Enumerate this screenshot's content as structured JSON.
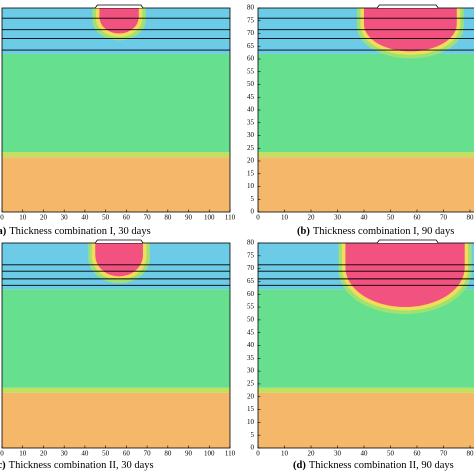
{
  "chart_data": [
    {
      "type": "field",
      "label": "(a)",
      "caption": "Thickness combination I, 30 days",
      "xlim": [
        0,
        110
      ],
      "ylim": [
        0,
        80
      ],
      "xticks": [
        0,
        10,
        20,
        30,
        40,
        50,
        60,
        70,
        80,
        90,
        100,
        110
      ],
      "layers": [
        {
          "color": "#f5b86a",
          "ylim": [
            0,
            21.5
          ]
        },
        {
          "color": "#c3df5e",
          "ylim": [
            21.5,
            23.5
          ]
        },
        {
          "color": "#66e08e",
          "ylim": [
            23.5,
            62
          ]
        },
        {
          "color": "#6ccbe6",
          "ylim": [
            62,
            80
          ]
        }
      ],
      "interfaces": [
        76,
        71.5,
        68,
        63.5
      ],
      "load": [
        45,
        68
      ],
      "hot_zone": {
        "color": "#f2527f",
        "xlim": [
          47,
          66
        ],
        "ylim": [
          70,
          80
        ]
      }
    },
    {
      "type": "field",
      "label": "(b)",
      "caption": "Thickness combination I, 90 days",
      "xlim": [
        0,
        110
      ],
      "ylim": [
        0,
        80
      ],
      "xticks": [
        0,
        10,
        20,
        30,
        40,
        50,
        60,
        70,
        80
      ],
      "yticks": [
        0,
        5,
        10,
        15,
        20,
        25,
        30,
        35,
        40,
        45,
        50,
        55,
        60,
        65,
        70,
        75,
        80
      ],
      "layers": [
        {
          "color": "#f5b86a",
          "ylim": [
            0,
            21.5
          ]
        },
        {
          "color": "#c3df5e",
          "ylim": [
            21.5,
            23.5
          ]
        },
        {
          "color": "#66e08e",
          "ylim": [
            23.5,
            62
          ]
        },
        {
          "color": "#6ccbe6",
          "ylim": [
            62,
            80
          ]
        }
      ],
      "interfaces": [
        76,
        71.5,
        68,
        63.5
      ],
      "load": [
        45,
        68
      ],
      "hot_zone": {
        "color": "#f2527f",
        "xlim": [
          40,
          75
        ],
        "ylim": [
          63,
          80
        ]
      }
    },
    {
      "type": "field",
      "label": "(c)",
      "caption": "Thickness combination II, 30 days",
      "xlim": [
        0,
        110
      ],
      "ylim": [
        0,
        80
      ],
      "xticks": [
        0,
        10,
        20,
        30,
        40,
        50,
        60,
        70,
        80,
        90,
        100,
        110
      ],
      "layers": [
        {
          "color": "#f5b86a",
          "ylim": [
            0,
            21.5
          ]
        },
        {
          "color": "#c3df5e",
          "ylim": [
            21.5,
            23.5
          ]
        },
        {
          "color": "#66e08e",
          "ylim": [
            23.5,
            62
          ]
        },
        {
          "color": "#6ccbe6",
          "ylim": [
            62,
            80
          ]
        }
      ],
      "interfaces": [
        71.5,
        69,
        66,
        63.5
      ],
      "load": [
        45,
        68
      ],
      "hot_zone": {
        "color": "#f2527f",
        "xlim": [
          45,
          68
        ],
        "ylim": [
          67,
          80
        ]
      }
    },
    {
      "type": "field",
      "label": "(d)",
      "caption": "Thickness combination II, 90 days",
      "xlim": [
        0,
        110
      ],
      "ylim": [
        0,
        80
      ],
      "xticks": [
        0,
        10,
        20,
        30,
        40,
        50,
        60,
        70,
        80
      ],
      "yticks": [
        0,
        5,
        10,
        15,
        20,
        25,
        30,
        35,
        40,
        45,
        50,
        55,
        60,
        65,
        70,
        75,
        80
      ],
      "layers": [
        {
          "color": "#f5b86a",
          "ylim": [
            0,
            21.5
          ]
        },
        {
          "color": "#c3df5e",
          "ylim": [
            21.5,
            23.5
          ]
        },
        {
          "color": "#66e08e",
          "ylim": [
            23.5,
            62
          ]
        },
        {
          "color": "#6ccbe6",
          "ylim": [
            62,
            80
          ]
        }
      ],
      "interfaces": [
        71.5,
        69,
        66,
        63.5
      ],
      "load": [
        45,
        68
      ],
      "hot_zone": {
        "color": "#f2527f",
        "xlim": [
          33,
          78
        ],
        "ylim": [
          55,
          80
        ]
      }
    }
  ]
}
